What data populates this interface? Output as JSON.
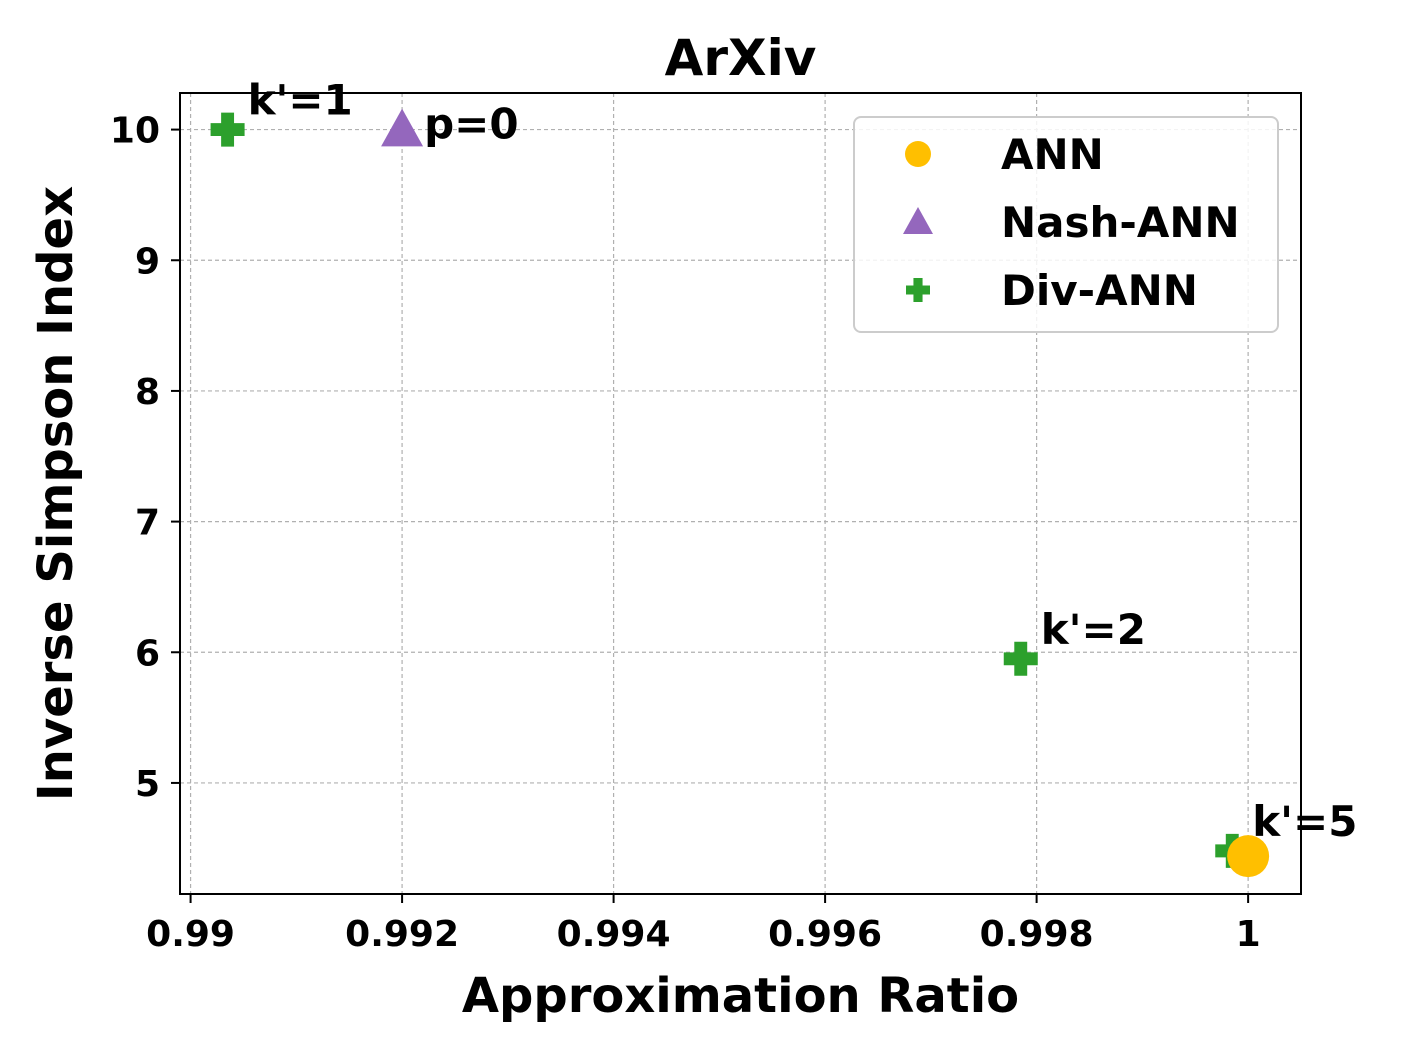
{
  "chart_data": {
    "type": "scatter",
    "title": "ArXiv",
    "xlabel": "Approximation Ratio",
    "ylabel": "Inverse Simpson Index",
    "xlim": [
      0.9899,
      1.0005
    ],
    "ylim": [
      4.15,
      10.28
    ],
    "xticks": [
      0.99,
      0.992,
      0.994,
      0.996,
      0.998,
      1.0
    ],
    "xtick_labels": [
      "0.99",
      "0.992",
      "0.994",
      "0.996",
      "0.998",
      "1"
    ],
    "yticks": [
      5,
      6,
      7,
      8,
      9,
      10
    ],
    "ytick_labels": [
      "5",
      "6",
      "7",
      "8",
      "9",
      "10"
    ],
    "grid": true,
    "legend_position": "top-right",
    "series": [
      {
        "name": "ANN",
        "marker": "circle",
        "color": "#FFBF00",
        "points": [
          {
            "x": 1.0,
            "y": 4.44,
            "label": ""
          }
        ]
      },
      {
        "name": "Nash-ANN",
        "marker": "triangle",
        "color": "#9467BD",
        "points": [
          {
            "x": 0.992,
            "y": 10.0,
            "label": "p=0"
          }
        ]
      },
      {
        "name": "Div-ANN",
        "marker": "plus",
        "color": "#2CA02C",
        "points": [
          {
            "x": 0.99035,
            "y": 10.0,
            "label": "k'=1"
          },
          {
            "x": 0.99785,
            "y": 5.95,
            "label": "k'=2"
          },
          {
            "x": 0.99985,
            "y": 4.48,
            "label": "k'=5"
          }
        ]
      }
    ]
  }
}
